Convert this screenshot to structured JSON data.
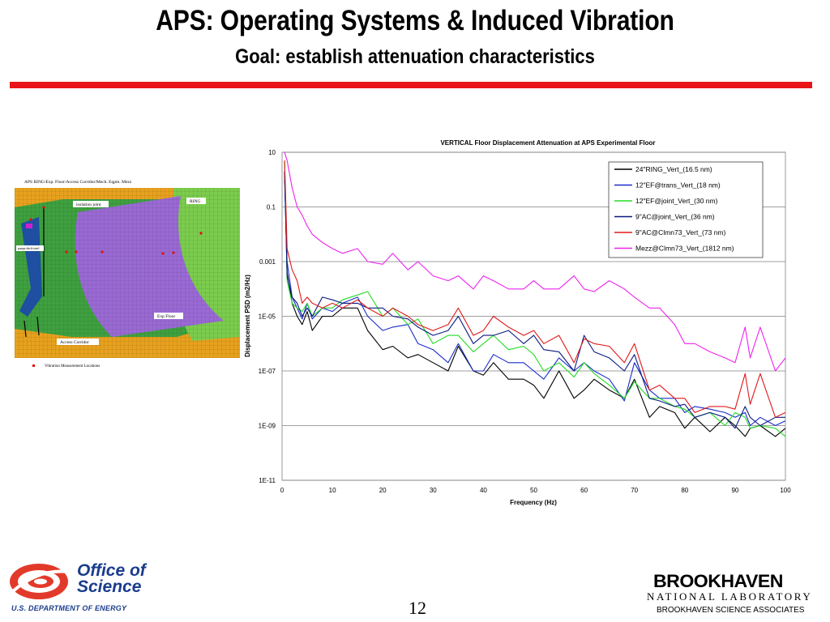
{
  "slide": {
    "title": "APS: Operating Systems & Induced Vibration",
    "subtitle": "Goal: establish attenuation characteristics",
    "page_number": "12"
  },
  "model": {
    "caption": "APS RING/Exp. Floor/Access Corridor/Mech. Eqpm. Mezz",
    "labels": {
      "isolation_joint": "isolation joint",
      "ring": "RING",
      "exp_floor": "Exp Floor",
      "access_corridor": "Access Corridor",
      "mezz": "pump-deck/steel"
    },
    "legend": "Vibration Measurement Locations",
    "colors": {
      "ring": "#5cb85c",
      "floor": "#9a6ad4",
      "corridor": "#e0a020",
      "mezz": "#1e4fa0",
      "points": "#e01010"
    }
  },
  "footer": {
    "office_line1": "Office of",
    "office_line2": "Science",
    "doe": "U.S. DEPARTMENT OF ENERGY",
    "bnl_name": "BROOKHAVEN",
    "bnl_sub": "NATIONAL LABORATORY",
    "bnl_assoc": "BROOKHAVEN SCIENCE ASSOCIATES"
  },
  "chart_data": {
    "type": "line",
    "title": "VERTICAL Floor Displacement Attenuation at APS Experimental Floor",
    "xlabel": "Frequency (Hz)",
    "ylabel": "Displacement PSD (m2/Hz)",
    "xlim": [
      0,
      100
    ],
    "ylim": [
      1e-11,
      10
    ],
    "yscale": "log",
    "xticks": [
      0,
      10,
      20,
      30,
      40,
      50,
      60,
      70,
      80,
      90,
      100
    ],
    "yticks": [
      {
        "value": 10,
        "label": "10"
      },
      {
        "value": 0.1,
        "label": "0.1"
      },
      {
        "value": 0.001,
        "label": "0.001"
      },
      {
        "value": 1e-05,
        "label": "1E-05"
      },
      {
        "value": 1e-07,
        "label": "1E-07"
      },
      {
        "value": 1e-09,
        "label": "1E-09"
      },
      {
        "value": 1e-11,
        "label": "1E-11"
      }
    ],
    "grid": "horizontal",
    "legend_position": "top-right",
    "x": [
      0.5,
      1,
      2,
      3,
      4,
      5,
      6,
      8,
      10,
      12,
      15,
      17,
      20,
      22,
      25,
      27,
      30,
      33,
      35,
      38,
      40,
      42,
      45,
      48,
      50,
      52,
      55,
      58,
      60,
      62,
      65,
      68,
      70,
      73,
      75,
      78,
      80,
      82,
      85,
      88,
      90,
      92,
      93,
      95,
      98,
      100
    ],
    "series": [
      {
        "name": "24\"RING_Vert_(16.5 nm)",
        "color": "#000000",
        "values": [
          2,
          0.0004,
          3e-05,
          1e-05,
          5e-06,
          1.5e-05,
          3e-06,
          1e-05,
          1e-05,
          2e-05,
          2e-05,
          3e-06,
          6e-07,
          8e-07,
          3e-07,
          4e-07,
          2e-07,
          1e-07,
          8e-07,
          1e-07,
          7e-08,
          2e-07,
          5e-08,
          5e-08,
          3e-08,
          1e-08,
          1e-07,
          1e-08,
          2e-08,
          5e-08,
          2e-08,
          1e-08,
          5e-08,
          2e-09,
          5e-09,
          3e-09,
          8e-10,
          2e-09,
          6e-10,
          2e-09,
          1e-09,
          4e-10,
          8e-10,
          1e-09,
          4e-10,
          8e-10
        ]
      },
      {
        "name": "12\"EF@trans_Vert_(18 nm)",
        "color": "#1a2ccc",
        "values": [
          1,
          0.001,
          5e-05,
          2e-05,
          8e-06,
          3e-05,
          8e-06,
          2e-05,
          1.5e-05,
          3e-05,
          5e-05,
          1e-05,
          3e-06,
          4e-06,
          5e-06,
          1e-06,
          6e-07,
          2e-07,
          1e-06,
          1e-07,
          1e-07,
          4e-07,
          2e-07,
          2e-07,
          1e-07,
          5e-08,
          3e-07,
          1e-07,
          2e-07,
          1e-07,
          5e-08,
          8e-09,
          2e-07,
          2e-08,
          1e-08,
          1e-08,
          3e-09,
          5e-09,
          4e-09,
          3e-09,
          2e-09,
          3e-09,
          1e-09,
          2e-09,
          1e-09,
          1.5e-09
        ]
      },
      {
        "name": "12\"EF@joint_Vert_(30 nm)",
        "color": "#22dd22",
        "values": [
          5,
          0.0002,
          3e-05,
          2e-05,
          1.5e-05,
          3e-05,
          1e-05,
          2e-05,
          2e-05,
          4e-05,
          6e-05,
          8e-05,
          1e-05,
          2e-05,
          5e-06,
          8e-06,
          1e-06,
          2e-06,
          2e-06,
          5e-07,
          1e-06,
          2e-06,
          6e-07,
          8e-07,
          4e-07,
          1e-07,
          2e-07,
          6e-08,
          2e-07,
          8e-08,
          3e-08,
          1e-08,
          4e-08,
          1e-08,
          1e-08,
          5e-09,
          4e-09,
          2e-09,
          3e-09,
          1e-09,
          3e-09,
          2e-09,
          8e-10,
          1e-09,
          8e-10,
          4e-10
        ]
      },
      {
        "name": "9\"AC@joint_Vert_(36 nm)",
        "color": "#0a1a80",
        "values": [
          2,
          0.0003,
          5e-05,
          3e-05,
          1e-05,
          2e-05,
          1e-05,
          5e-05,
          4e-05,
          3e-05,
          3e-05,
          2e-05,
          2e-05,
          1e-05,
          8e-06,
          4e-06,
          2e-06,
          3e-06,
          1e-05,
          1e-06,
          2e-06,
          2e-06,
          3e-06,
          1e-06,
          2e-06,
          6e-07,
          5e-07,
          1e-07,
          2e-06,
          5e-07,
          3e-07,
          1e-07,
          4e-07,
          1e-08,
          8e-09,
          5e-09,
          6e-09,
          2e-09,
          3e-09,
          2e-09,
          8e-10,
          5e-09,
          2e-09,
          1e-09,
          2e-09,
          2e-09
        ]
      },
      {
        "name": "9\"AC@Clmn73_Vert_(73 nm)",
        "color": "#e01818",
        "values": [
          5,
          0.003,
          0.0005,
          0.0002,
          3e-05,
          5e-05,
          3e-05,
          2e-05,
          3e-05,
          2e-05,
          4e-05,
          2e-05,
          1e-05,
          2e-05,
          1e-05,
          5e-06,
          3e-06,
          5e-06,
          2e-05,
          2e-06,
          3e-06,
          1e-05,
          4e-06,
          2e-06,
          3e-06,
          1e-06,
          2e-06,
          2e-07,
          1.5e-06,
          1e-06,
          8e-07,
          2e-07,
          1e-06,
          2e-08,
          3e-08,
          1e-08,
          1e-08,
          3e-09,
          5e-09,
          5e-09,
          4e-09,
          8e-08,
          6e-09,
          8e-08,
          2e-09,
          3e-09
        ]
      },
      {
        "name": "Mezz@Clmn73_Vert_(1812 nm)",
        "color": "#ee22ee",
        "values": [
          10,
          5,
          0.5,
          0.1,
          0.05,
          0.02,
          0.01,
          0.005,
          0.003,
          0.002,
          0.003,
          0.001,
          0.0008,
          0.002,
          0.0005,
          0.001,
          0.0003,
          0.0002,
          0.0003,
          0.0001,
          0.0003,
          0.0002,
          0.0001,
          0.0001,
          0.0002,
          0.0001,
          0.0001,
          0.0003,
          0.0001,
          8e-05,
          0.0002,
          0.0001,
          5e-05,
          2e-05,
          2e-05,
          5e-06,
          1e-06,
          1e-06,
          5e-07,
          3e-07,
          2e-07,
          4e-06,
          3e-07,
          4e-06,
          1e-07,
          3e-07
        ]
      }
    ]
  }
}
